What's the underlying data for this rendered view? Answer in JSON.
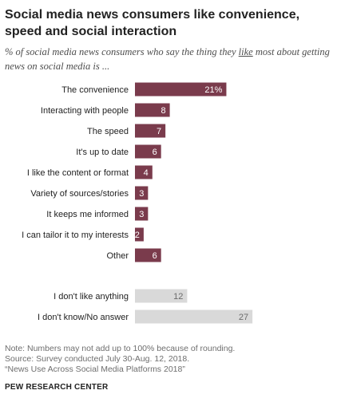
{
  "header": {
    "title": "Social media news consumers like convenience, speed and social interaction",
    "subtitle_prefix": "% of social media news consumers who say the thing they ",
    "subtitle_emphasis": "like",
    "subtitle_suffix": " most about getting news on social media is ..."
  },
  "chart_data": {
    "type": "bar",
    "orientation": "horizontal",
    "categories": [
      "The convenience",
      "Interacting with people",
      "The speed",
      "It's up to date",
      "I like the content or format",
      "Variety of sources/stories",
      "It keeps me informed",
      "I can tailor it to my interests",
      "Other",
      "I don't like anything",
      "I don't know/No answer"
    ],
    "values": [
      21,
      8,
      7,
      6,
      4,
      3,
      3,
      2,
      6,
      12,
      27
    ],
    "value_labels": [
      "21%",
      "8",
      "7",
      "6",
      "4",
      "3",
      "3",
      "2",
      "6",
      "12",
      "27"
    ],
    "groups": [
      "main",
      "main",
      "main",
      "main",
      "main",
      "main",
      "main",
      "main",
      "main",
      "other",
      "other"
    ],
    "colors": {
      "main": "#7a3b4c",
      "other": "#d9d9d9",
      "main_label": "#ffffff",
      "other_label": "#6b6b6b"
    },
    "title": "",
    "xlabel": "",
    "ylabel": "",
    "xlim": [
      0,
      27
    ],
    "grid": false,
    "legend": "none"
  },
  "footer": {
    "notes": [
      "Note: Numbers may not add up to 100% because of rounding.",
      "Source: Survey conducted July 30-Aug. 12, 2018.",
      "“News Use Across Social Media Platforms 2018”"
    ],
    "brand": "PEW RESEARCH CENTER"
  }
}
